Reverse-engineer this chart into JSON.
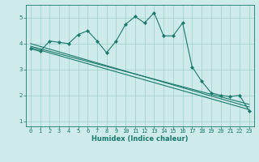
{
  "title": "",
  "xlabel": "Humidex (Indice chaleur)",
  "ylabel": "",
  "bg_color": "#ceeaea",
  "line_color": "#1a7a6e",
  "xlim": [
    -0.5,
    23.5
  ],
  "ylim": [
    0.8,
    5.5
  ],
  "xticks": [
    0,
    1,
    2,
    3,
    4,
    5,
    6,
    7,
    8,
    9,
    10,
    11,
    12,
    13,
    14,
    15,
    16,
    17,
    18,
    19,
    20,
    21,
    22,
    23
  ],
  "yticks": [
    1,
    2,
    3,
    4,
    5
  ],
  "series1_x": [
    0,
    1,
    2,
    3,
    4,
    5,
    6,
    7,
    8,
    9,
    10,
    11,
    12,
    13,
    14,
    15,
    16,
    17,
    18,
    19,
    20,
    21,
    22,
    23
  ],
  "series1_y": [
    3.8,
    3.7,
    4.1,
    4.05,
    4.0,
    4.35,
    4.5,
    4.1,
    3.65,
    4.1,
    4.75,
    5.05,
    4.8,
    5.2,
    4.3,
    4.3,
    4.8,
    3.1,
    2.55,
    2.1,
    2.0,
    1.95,
    2.0,
    1.4
  ],
  "series2_x": [
    0,
    23
  ],
  "series2_y": [
    3.85,
    1.45
  ],
  "series3_x": [
    0,
    23
  ],
  "series3_y": [
    3.9,
    1.65
  ],
  "series4_x": [
    0,
    23
  ],
  "series4_y": [
    4.0,
    1.55
  ],
  "grid_color": "#9dcece",
  "font_color": "#1a7a6e",
  "tick_fontsize": 5.0,
  "xlabel_fontsize": 6.0
}
